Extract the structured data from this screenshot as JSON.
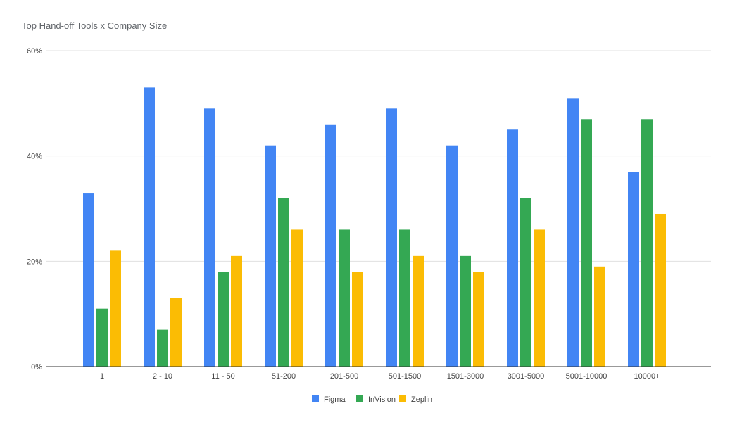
{
  "chart_data": {
    "type": "bar",
    "title": "Top Hand-off Tools x Company Size",
    "xlabel": "",
    "ylabel": "",
    "categories": [
      "1",
      "2 - 10",
      "11 - 50",
      "51-200",
      "201-500",
      "501-1500",
      "1501-3000",
      "3001-5000",
      "5001-10000",
      "10000+"
    ],
    "series": [
      {
        "name": "Figma",
        "color": "#4285f4",
        "values": [
          33,
          53,
          49,
          42,
          46,
          49,
          42,
          45,
          51,
          37
        ]
      },
      {
        "name": "InVision",
        "color": "#34a853",
        "values": [
          11,
          7,
          18,
          32,
          26,
          26,
          21,
          32,
          47,
          47
        ]
      },
      {
        "name": "Zeplin",
        "color": "#fbbc04",
        "values": [
          22,
          13,
          21,
          26,
          18,
          21,
          18,
          26,
          19,
          29
        ]
      }
    ],
    "ylim": [
      0,
      60
    ],
    "yticks": [
      {
        "value": 0,
        "label": "0%"
      },
      {
        "value": 20,
        "label": "20%"
      },
      {
        "value": 40,
        "label": "40%"
      },
      {
        "value": 60,
        "label": "60%"
      }
    ],
    "grid": true,
    "legend_position": "bottom"
  }
}
